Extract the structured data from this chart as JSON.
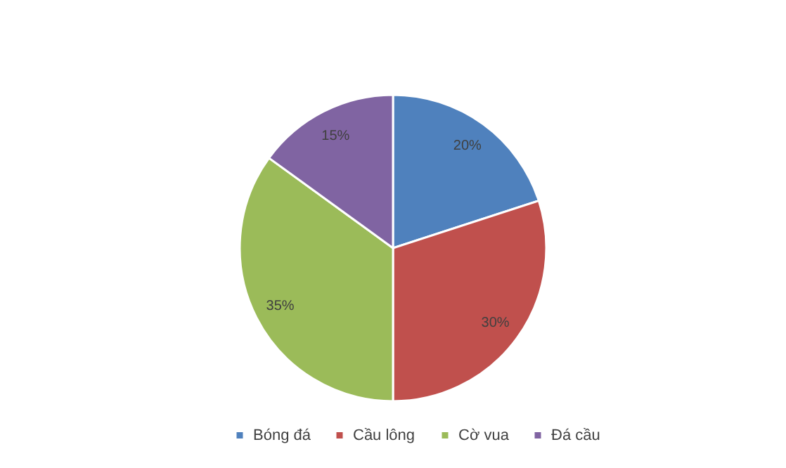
{
  "chart_data": {
    "type": "pie",
    "categories": [
      "Bóng đá",
      "Cầu lông",
      "Cờ vua",
      "Đá cầu"
    ],
    "values": [
      20,
      30,
      35,
      15
    ],
    "colors": [
      "#4f81bd",
      "#c0504d",
      "#9bbb59",
      "#8064a2"
    ],
    "value_labels": [
      "20%",
      "30%",
      "35%",
      "15%"
    ],
    "legend": "bottom"
  }
}
